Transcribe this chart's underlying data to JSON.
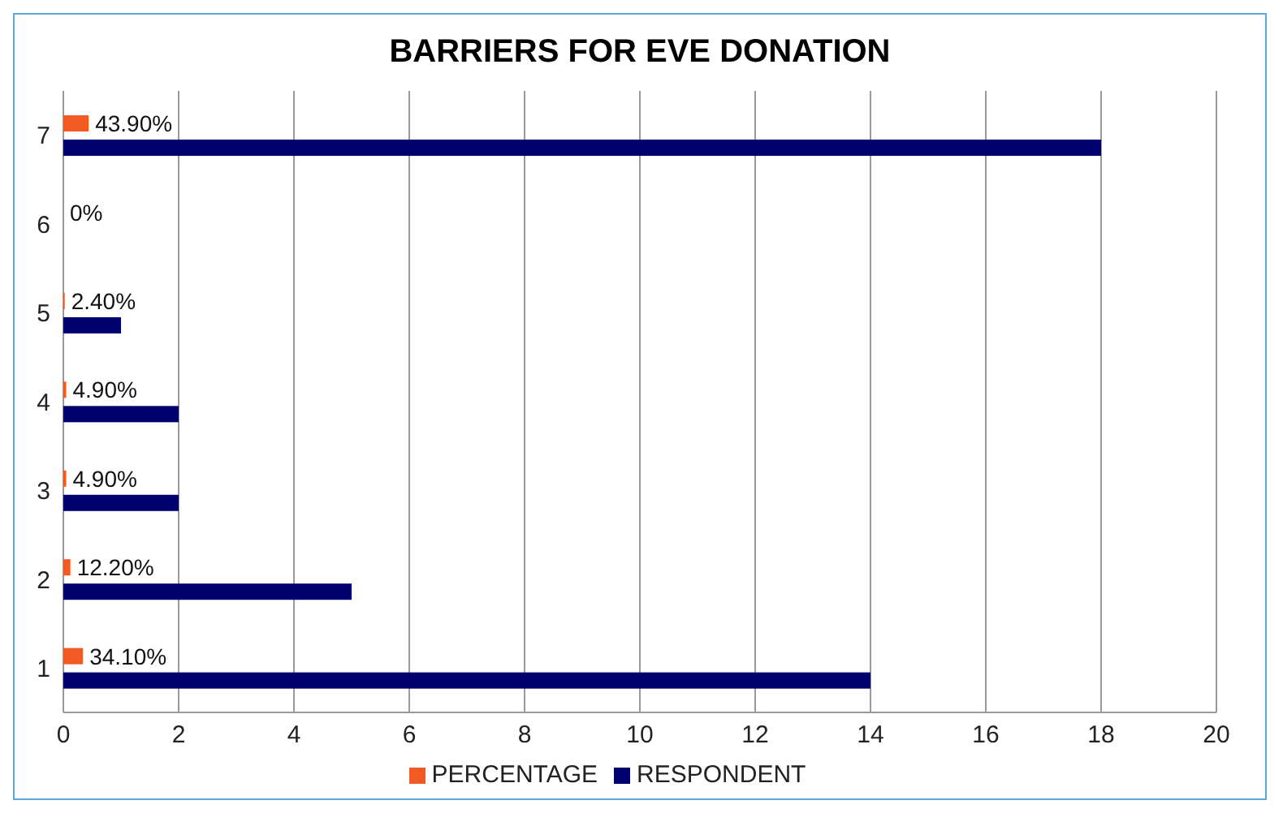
{
  "chart_data": {
    "type": "bar",
    "orientation": "horizontal",
    "title": "BARRIERS FOR EVE DONATION",
    "categories": [
      "7",
      "6",
      "5",
      "4",
      "3",
      "2",
      "1"
    ],
    "series": [
      {
        "name": "PERCENTAGE",
        "color": "#f15a22",
        "values": [
          0.439,
          0,
          0.024,
          0.049,
          0.049,
          0.122,
          0.341
        ],
        "value_labels": [
          "43.90%",
          "0%",
          "2.40%",
          "4.90%",
          "4.90%",
          "12.20%",
          "34.10%"
        ]
      },
      {
        "name": "RESPONDENT",
        "color": "#00006e",
        "values": [
          18,
          0,
          1,
          2,
          2,
          5,
          14
        ]
      }
    ],
    "xlim": [
      0,
      20
    ],
    "xticks": [
      0,
      2,
      4,
      6,
      8,
      10,
      12,
      14,
      16,
      18,
      20
    ],
    "grid": "x",
    "legend": "bottom"
  }
}
